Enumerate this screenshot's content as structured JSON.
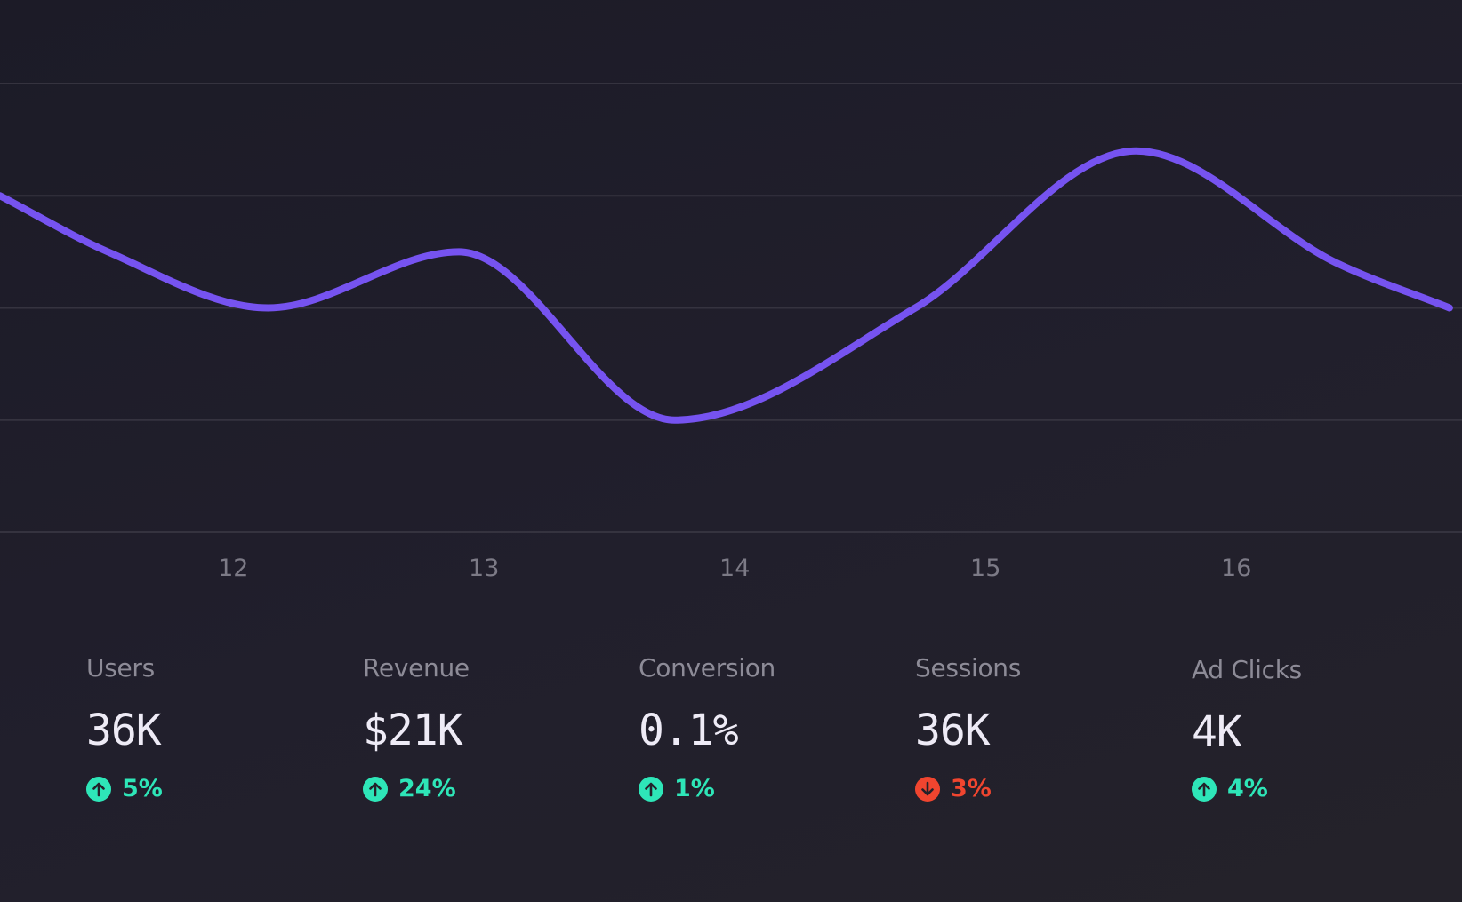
{
  "chart_data": {
    "type": "line",
    "x": [
      11.07,
      11.5,
      12.14,
      12.9,
      13.76,
      14.72,
      15.6,
      16.4,
      16.85
    ],
    "y": [
      3.0,
      2.5,
      2.0,
      2.5,
      1.0,
      2.0,
      3.4,
      2.4,
      2.0
    ],
    "xlim": [
      11.07,
      16.9
    ],
    "ylim": [
      0,
      4
    ],
    "x_ticks": [
      12,
      13,
      14,
      15,
      16
    ],
    "x_tick_labels": [
      "12",
      "13",
      "14",
      "15",
      "16"
    ],
    "grid": true,
    "gridline_count": 5,
    "line_color": "#7653f0",
    "title": "",
    "xlabel": "",
    "ylabel": ""
  },
  "stats": [
    {
      "label": "Users",
      "value": "36K",
      "change": "5%",
      "direction": "up"
    },
    {
      "label": "Revenue",
      "value": "$21K",
      "change": "24%",
      "direction": "up"
    },
    {
      "label": "Conversion",
      "value": "0.1%",
      "change": "1%",
      "direction": "up"
    },
    {
      "label": "Sessions",
      "value": "36K",
      "change": "3%",
      "direction": "down"
    },
    {
      "label": "Ad Clicks",
      "value": "4K",
      "change": "4%",
      "direction": "up"
    }
  ],
  "colors": {
    "up": "#2ee6b8",
    "down": "#f0452f",
    "line": "#7653f0",
    "grid": "#35333f"
  }
}
